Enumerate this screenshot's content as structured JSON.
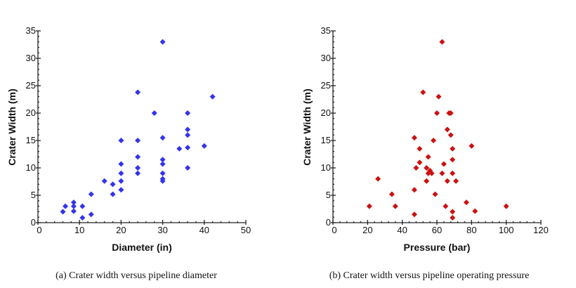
{
  "chart_data": [
    {
      "type": "scatter",
      "xlabel": "Diameter (in)",
      "ylabel": "Crater Width (m)",
      "caption": "(a) Crater width versus pipeline diameter",
      "xlim": [
        0,
        50
      ],
      "ylim": [
        0,
        35
      ],
      "x_ticks": [
        "0",
        "10",
        "20",
        "30",
        "40",
        "50"
      ],
      "y_ticks": [
        "0",
        "5",
        "10",
        "15",
        "20",
        "25",
        "30",
        "35"
      ],
      "color": "#3333ee",
      "marker": "diamond",
      "grid": false,
      "points": [
        {
          "x": 6,
          "y": 2
        },
        {
          "x": 6.6,
          "y": 3
        },
        {
          "x": 8.6,
          "y": 3.7
        },
        {
          "x": 8.6,
          "y": 3
        },
        {
          "x": 8.6,
          "y": 2.1
        },
        {
          "x": 10.7,
          "y": 3
        },
        {
          "x": 10.7,
          "y": 0.9
        },
        {
          "x": 12.8,
          "y": 1.5
        },
        {
          "x": 12.8,
          "y": 5.2
        },
        {
          "x": 16,
          "y": 7.6
        },
        {
          "x": 18,
          "y": 7
        },
        {
          "x": 18,
          "y": 5.2
        },
        {
          "x": 20,
          "y": 15
        },
        {
          "x": 20,
          "y": 10.7
        },
        {
          "x": 20,
          "y": 9
        },
        {
          "x": 20,
          "y": 7.6
        },
        {
          "x": 20,
          "y": 6
        },
        {
          "x": 24,
          "y": 23.8
        },
        {
          "x": 24,
          "y": 15
        },
        {
          "x": 24,
          "y": 12
        },
        {
          "x": 24,
          "y": 10
        },
        {
          "x": 24,
          "y": 9
        },
        {
          "x": 28,
          "y": 20
        },
        {
          "x": 30,
          "y": 33
        },
        {
          "x": 30,
          "y": 15.5
        },
        {
          "x": 30,
          "y": 11.5
        },
        {
          "x": 30,
          "y": 10.7
        },
        {
          "x": 30,
          "y": 9
        },
        {
          "x": 30,
          "y": 8
        },
        {
          "x": 30,
          "y": 7.6
        },
        {
          "x": 34,
          "y": 13.5
        },
        {
          "x": 36,
          "y": 20
        },
        {
          "x": 36,
          "y": 17
        },
        {
          "x": 36,
          "y": 16
        },
        {
          "x": 36,
          "y": 13.7
        },
        {
          "x": 36,
          "y": 10
        },
        {
          "x": 40,
          "y": 14
        },
        {
          "x": 42,
          "y": 23
        }
      ]
    },
    {
      "type": "scatter",
      "xlabel": "Pressure (bar)",
      "ylabel": "Crater Width (m)",
      "caption": "(b) Crater width versus pipeline operating pressure",
      "xlim": [
        0,
        120
      ],
      "ylim": [
        0,
        35
      ],
      "x_ticks": [
        "0",
        "20",
        "40",
        "60",
        "80",
        "100",
        "120"
      ],
      "y_ticks": [
        "0",
        "5",
        "10",
        "15",
        "20",
        "25",
        "30",
        "35"
      ],
      "color": "#cc1111",
      "marker": "diamond",
      "grid": false,
      "points": [
        {
          "x": 21,
          "y": 3
        },
        {
          "x": 26,
          "y": 8
        },
        {
          "x": 34,
          "y": 5.2
        },
        {
          "x": 36,
          "y": 3
        },
        {
          "x": 47,
          "y": 15.5
        },
        {
          "x": 47,
          "y": 6
        },
        {
          "x": 47,
          "y": 1.5
        },
        {
          "x": 48,
          "y": 10
        },
        {
          "x": 50,
          "y": 13.5
        },
        {
          "x": 50,
          "y": 11
        },
        {
          "x": 52,
          "y": 23.8
        },
        {
          "x": 54,
          "y": 10
        },
        {
          "x": 54,
          "y": 7.6
        },
        {
          "x": 55,
          "y": 12
        },
        {
          "x": 55,
          "y": 9
        },
        {
          "x": 56,
          "y": 9.5
        },
        {
          "x": 57,
          "y": 9
        },
        {
          "x": 58,
          "y": 15
        },
        {
          "x": 59,
          "y": 5.2
        },
        {
          "x": 60,
          "y": 20
        },
        {
          "x": 61,
          "y": 23
        },
        {
          "x": 63,
          "y": 33
        },
        {
          "x": 63,
          "y": 9
        },
        {
          "x": 64,
          "y": 10.7
        },
        {
          "x": 65,
          "y": 3
        },
        {
          "x": 66,
          "y": 17
        },
        {
          "x": 66,
          "y": 7.6
        },
        {
          "x": 67,
          "y": 20
        },
        {
          "x": 68,
          "y": 20
        },
        {
          "x": 68,
          "y": 16
        },
        {
          "x": 69,
          "y": 13.5
        },
        {
          "x": 69,
          "y": 11.5
        },
        {
          "x": 69,
          "y": 9
        },
        {
          "x": 69,
          "y": 2
        },
        {
          "x": 69,
          "y": 0.9
        },
        {
          "x": 71,
          "y": 7.6
        },
        {
          "x": 77,
          "y": 3.7
        },
        {
          "x": 80,
          "y": 14
        },
        {
          "x": 82,
          "y": 2.1
        },
        {
          "x": 100,
          "y": 3
        }
      ]
    }
  ]
}
